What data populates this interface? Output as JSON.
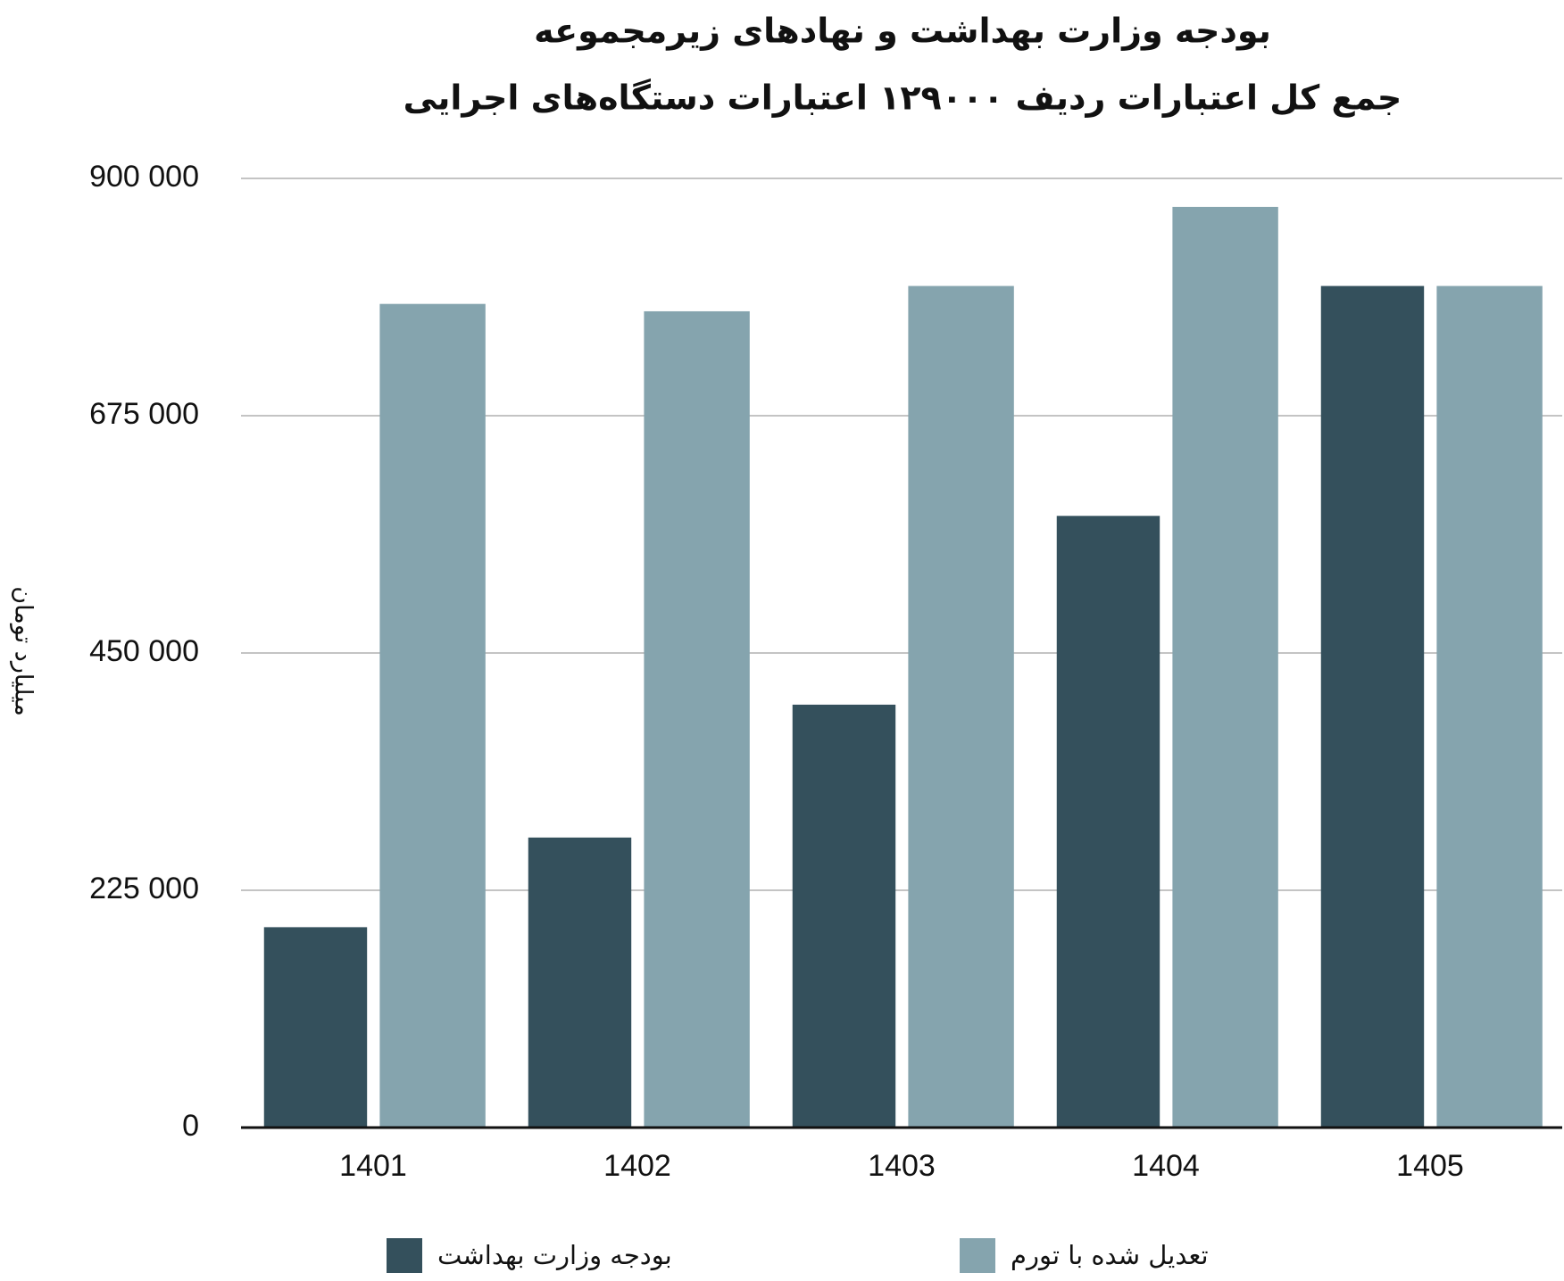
{
  "chart_data": {
    "type": "bar",
    "title": "بودجه وزارت بهداشت و نهادهای زیرمجموعه",
    "subtitle": "جمع کل اعتبارات ردیف ۱۲۹۰۰۰ اعتبارات دستگاه‌های اجرایی",
    "y_label": "میلیارد تومان",
    "categories": [
      "1401",
      "1402",
      "1403",
      "1404",
      "1405"
    ],
    "series": [
      {
        "name": "بودجه وزارت بهداشت",
        "color": "#34505c",
        "values": [
          190000,
          275000,
          401000,
          580000,
          798000
        ]
      },
      {
        "name": "تعدیل شده با تورم",
        "color": "#85a4ae",
        "values": [
          781000,
          774000,
          798000,
          873000,
          798000
        ]
      }
    ],
    "ylim": [
      0,
      900000
    ],
    "yticks": [
      0,
      {
        "value": 225000,
        "label": "225 000"
      },
      {
        "value": 450000,
        "label": "450 000"
      },
      {
        "value": 675000,
        "label": "675 000"
      },
      {
        "value": 900000,
        "label": "900 000"
      }
    ],
    "grid": true
  }
}
